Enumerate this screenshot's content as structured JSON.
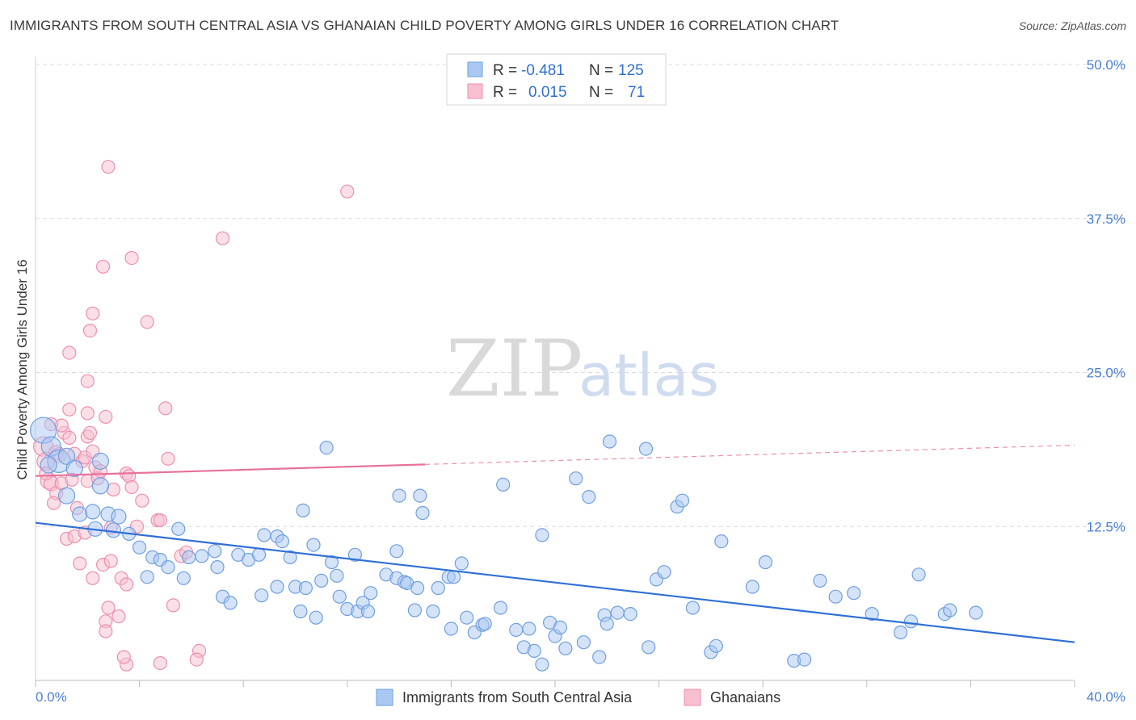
{
  "title": "IMMIGRANTS FROM SOUTH CENTRAL ASIA VS GHANAIAN CHILD POVERTY AMONG GIRLS UNDER 16 CORRELATION CHART",
  "source": "Source: ZipAtlas.com",
  "watermark": {
    "zip": "ZIP",
    "atlas": "atlas"
  },
  "stats": {
    "r_label": "R =",
    "n_label": "N =",
    "blue": {
      "r": "-0.481",
      "n": "125"
    },
    "pink": {
      "r": "0.015",
      "n": "71"
    }
  },
  "colors": {
    "blue_fill": "#a9c8f2",
    "blue_stroke": "#6f9fe0",
    "blue_line": "#2f6fd6",
    "pink_fill": "#f7bfd0",
    "pink_stroke": "#ec8fae",
    "pink_line": "#e8709a",
    "grid": "#dcdcdc",
    "tick_text": "#4a7fd6"
  },
  "chart_data": {
    "type": "scatter",
    "title": "IMMIGRANTS FROM SOUTH CENTRAL ASIA VS GHANAIAN CHILD POVERTY AMONG GIRLS UNDER 16 CORRELATION CHART",
    "xlabel": "",
    "ylabel": "Child Poverty Among Girls Under 16",
    "xlim": [
      0,
      40
    ],
    "ylim": [
      0,
      50
    ],
    "x_tick_labels": [
      "0.0%",
      "40.0%"
    ],
    "y_tick_labels": [
      "12.5%",
      "25.0%",
      "37.5%",
      "50.0%"
    ],
    "y_ticks": [
      12.5,
      25,
      37.5,
      50
    ],
    "legend_position": "bottom-center",
    "grid": true,
    "series": [
      {
        "name": "Immigrants from South Central Asia",
        "color": "#a9c8f2",
        "trend": {
          "x": [
            0,
            40
          ],
          "y": [
            12.8,
            3.1
          ],
          "dashed_from": null
        },
        "points": [
          [
            0.3,
            20.3,
            16
          ],
          [
            0.6,
            19.0,
            12
          ],
          [
            0.9,
            17.8,
            14
          ],
          [
            1.2,
            18.2,
            10
          ],
          [
            0.5,
            17.5,
            10
          ],
          [
            1.5,
            17.2,
            10
          ],
          [
            2.5,
            17.8,
            10
          ],
          [
            1.2,
            15.0,
            10
          ],
          [
            2.5,
            15.8,
            10
          ],
          [
            1.7,
            13.5,
            9
          ],
          [
            2.2,
            13.7,
            9
          ],
          [
            2.8,
            13.5,
            9
          ],
          [
            3.2,
            13.3,
            9
          ],
          [
            2.3,
            12.3,
            9
          ],
          [
            3.0,
            12.2,
            9
          ],
          [
            3.6,
            11.9,
            8
          ],
          [
            4.0,
            10.8,
            8
          ],
          [
            4.5,
            10.0,
            8
          ],
          [
            5.5,
            12.3,
            8
          ],
          [
            4.8,
            9.8,
            8
          ],
          [
            5.1,
            9.2,
            8
          ],
          [
            5.9,
            10.0,
            8
          ],
          [
            6.4,
            10.1,
            8
          ],
          [
            6.9,
            10.5,
            8
          ],
          [
            7.0,
            9.2,
            8
          ],
          [
            7.8,
            10.2,
            8
          ],
          [
            8.2,
            9.8,
            8
          ],
          [
            8.6,
            10.2,
            8
          ],
          [
            8.8,
            11.8,
            8
          ],
          [
            9.3,
            11.7,
            8
          ],
          [
            9.8,
            10.0,
            8
          ],
          [
            9.5,
            11.3,
            8
          ],
          [
            10.3,
            13.8,
            8
          ],
          [
            10.7,
            11.0,
            8
          ],
          [
            11.2,
            18.9,
            8
          ],
          [
            11.4,
            9.6,
            8
          ],
          [
            11.6,
            8.5,
            8
          ],
          [
            12.3,
            10.2,
            8
          ],
          [
            4.3,
            8.4,
            8
          ],
          [
            5.7,
            8.3,
            8
          ],
          [
            7.2,
            6.8,
            8
          ],
          [
            7.5,
            6.3,
            8
          ],
          [
            8.7,
            6.9,
            8
          ],
          [
            9.3,
            7.6,
            8
          ],
          [
            10.0,
            7.6,
            8
          ],
          [
            10.4,
            7.5,
            8
          ],
          [
            11.0,
            8.1,
            8
          ],
          [
            10.2,
            5.6,
            8
          ],
          [
            10.8,
            5.1,
            8
          ],
          [
            11.7,
            6.8,
            8
          ],
          [
            12.0,
            5.8,
            8
          ],
          [
            12.4,
            5.6,
            8
          ],
          [
            12.6,
            6.3,
            8
          ],
          [
            12.8,
            5.6,
            8
          ],
          [
            12.9,
            7.1,
            8
          ],
          [
            13.5,
            8.6,
            8
          ],
          [
            13.9,
            8.3,
            8
          ],
          [
            14.2,
            8.0,
            8
          ],
          [
            14.3,
            7.9,
            8
          ],
          [
            14.7,
            7.5,
            8
          ],
          [
            13.9,
            10.5,
            8
          ],
          [
            14.0,
            15.0,
            8
          ],
          [
            14.8,
            15.0,
            8
          ],
          [
            14.9,
            13.6,
            8
          ],
          [
            14.6,
            5.7,
            8
          ],
          [
            15.3,
            5.6,
            8
          ],
          [
            15.5,
            7.5,
            8
          ],
          [
            15.9,
            8.4,
            8
          ],
          [
            16.1,
            8.4,
            8
          ],
          [
            16.4,
            9.5,
            8
          ],
          [
            16.0,
            4.2,
            8
          ],
          [
            16.6,
            5.1,
            8
          ],
          [
            16.9,
            3.9,
            8
          ],
          [
            17.2,
            4.5,
            8
          ],
          [
            17.3,
            4.6,
            8
          ],
          [
            17.9,
            5.9,
            8
          ],
          [
            18.0,
            15.9,
            8
          ],
          [
            18.5,
            4.1,
            8
          ],
          [
            18.8,
            2.7,
            8
          ],
          [
            19.2,
            2.4,
            8
          ],
          [
            19.0,
            4.2,
            8
          ],
          [
            19.5,
            1.3,
            8
          ],
          [
            19.5,
            11.8,
            8
          ],
          [
            19.8,
            4.7,
            8
          ],
          [
            20.0,
            3.6,
            8
          ],
          [
            20.2,
            4.3,
            8
          ],
          [
            20.4,
            2.6,
            8
          ],
          [
            20.8,
            16.4,
            8
          ],
          [
            21.1,
            3.1,
            8
          ],
          [
            21.3,
            14.9,
            8
          ],
          [
            21.9,
            5.3,
            8
          ],
          [
            21.7,
            1.9,
            8
          ],
          [
            22.0,
            4.6,
            8
          ],
          [
            22.1,
            19.4,
            8
          ],
          [
            22.4,
            5.5,
            8
          ],
          [
            22.9,
            5.4,
            8
          ],
          [
            23.5,
            18.8,
            8
          ],
          [
            23.6,
            2.7,
            8
          ],
          [
            23.9,
            8.2,
            8
          ],
          [
            24.2,
            8.8,
            8
          ],
          [
            24.7,
            14.1,
            8
          ],
          [
            24.9,
            14.6,
            8
          ],
          [
            25.3,
            5.9,
            8
          ],
          [
            26.0,
            2.3,
            8
          ],
          [
            26.2,
            2.8,
            8
          ],
          [
            26.4,
            11.3,
            8
          ],
          [
            27.6,
            7.6,
            8
          ],
          [
            28.1,
            9.6,
            8
          ],
          [
            29.2,
            1.6,
            8
          ],
          [
            29.6,
            1.7,
            8
          ],
          [
            30.2,
            8.1,
            8
          ],
          [
            30.8,
            6.8,
            8
          ],
          [
            31.5,
            7.1,
            8
          ],
          [
            32.2,
            5.4,
            8
          ],
          [
            33.3,
            3.9,
            8
          ],
          [
            33.7,
            4.8,
            8
          ],
          [
            34.0,
            8.6,
            8
          ],
          [
            35.0,
            5.4,
            8
          ],
          [
            35.2,
            5.7,
            8
          ],
          [
            36.2,
            5.5,
            8
          ]
        ]
      },
      {
        "name": "Ghanaians",
        "color": "#f7bfd0",
        "trend": {
          "x": [
            0,
            40
          ],
          "y": [
            16.6,
            19.1
          ],
          "dashed_from": 15.0
        },
        "points": [
          [
            0.3,
            19.0,
            12
          ],
          [
            0.4,
            17.8,
            11
          ],
          [
            0.5,
            16.2,
            10
          ],
          [
            0.6,
            16.0,
            9
          ],
          [
            0.8,
            18.5,
            9
          ],
          [
            0.9,
            18.3,
            9
          ],
          [
            0.8,
            15.2,
            8
          ],
          [
            0.7,
            14.4,
            8
          ],
          [
            1.0,
            16.0,
            8
          ],
          [
            1.1,
            20.1,
            8
          ],
          [
            1.0,
            20.7,
            8
          ],
          [
            1.3,
            22.0,
            8
          ],
          [
            1.3,
            19.7,
            8
          ],
          [
            1.5,
            18.4,
            8
          ],
          [
            1.6,
            14.0,
            8
          ],
          [
            1.2,
            11.5,
            8
          ],
          [
            1.5,
            11.7,
            8
          ],
          [
            1.8,
            17.8,
            8
          ],
          [
            1.9,
            18.1,
            8
          ],
          [
            1.9,
            12.0,
            8
          ],
          [
            2.0,
            16.2,
            8
          ],
          [
            2.0,
            19.8,
            8
          ],
          [
            2.2,
            18.6,
            8
          ],
          [
            2.0,
            24.3,
            8
          ],
          [
            1.3,
            26.6,
            8
          ],
          [
            2.0,
            21.7,
            8
          ],
          [
            2.1,
            20.1,
            8
          ],
          [
            2.3,
            17.3,
            8
          ],
          [
            2.2,
            8.3,
            8
          ],
          [
            2.4,
            16.4,
            8
          ],
          [
            2.5,
            17.0,
            8
          ],
          [
            2.7,
            21.4,
            8
          ],
          [
            2.6,
            9.4,
            8
          ],
          [
            2.9,
            9.7,
            8
          ],
          [
            2.8,
            5.9,
            8
          ],
          [
            2.7,
            4.8,
            8
          ],
          [
            2.7,
            4.0,
            8
          ],
          [
            3.2,
            5.2,
            8
          ],
          [
            3.3,
            8.3,
            8
          ],
          [
            3.5,
            7.8,
            8
          ],
          [
            3.5,
            16.8,
            8
          ],
          [
            3.6,
            16.6,
            8
          ],
          [
            3.7,
            15.7,
            8
          ],
          [
            3.9,
            12.5,
            8
          ],
          [
            4.1,
            14.6,
            8
          ],
          [
            4.3,
            29.1,
            8
          ],
          [
            4.7,
            13.0,
            8
          ],
          [
            4.8,
            13.0,
            8
          ],
          [
            5.0,
            22.1,
            8
          ],
          [
            5.1,
            18.0,
            8
          ],
          [
            5.3,
            6.1,
            8
          ],
          [
            5.6,
            10.1,
            8
          ],
          [
            5.8,
            10.4,
            8
          ],
          [
            3.7,
            34.3,
            8
          ],
          [
            2.6,
            33.6,
            8
          ],
          [
            2.1,
            28.4,
            8
          ],
          [
            2.2,
            29.8,
            8
          ],
          [
            2.8,
            41.7,
            8
          ],
          [
            7.2,
            35.9,
            8
          ],
          [
            12.0,
            39.7,
            8
          ],
          [
            6.3,
            2.4,
            8
          ],
          [
            6.2,
            1.7,
            8
          ],
          [
            4.8,
            1.4,
            8
          ],
          [
            3.5,
            1.3,
            8
          ],
          [
            3.4,
            1.9,
            8
          ],
          [
            1.4,
            16.3,
            8
          ],
          [
            0.6,
            20.8,
            8
          ],
          [
            0.4,
            16.8,
            8
          ],
          [
            1.7,
            9.5,
            8
          ],
          [
            2.9,
            12.4,
            8
          ],
          [
            3.0,
            15.5,
            8
          ]
        ]
      }
    ]
  },
  "legend": {
    "blue_label": "Immigrants from South Central Asia",
    "pink_label": "Ghanaians"
  }
}
